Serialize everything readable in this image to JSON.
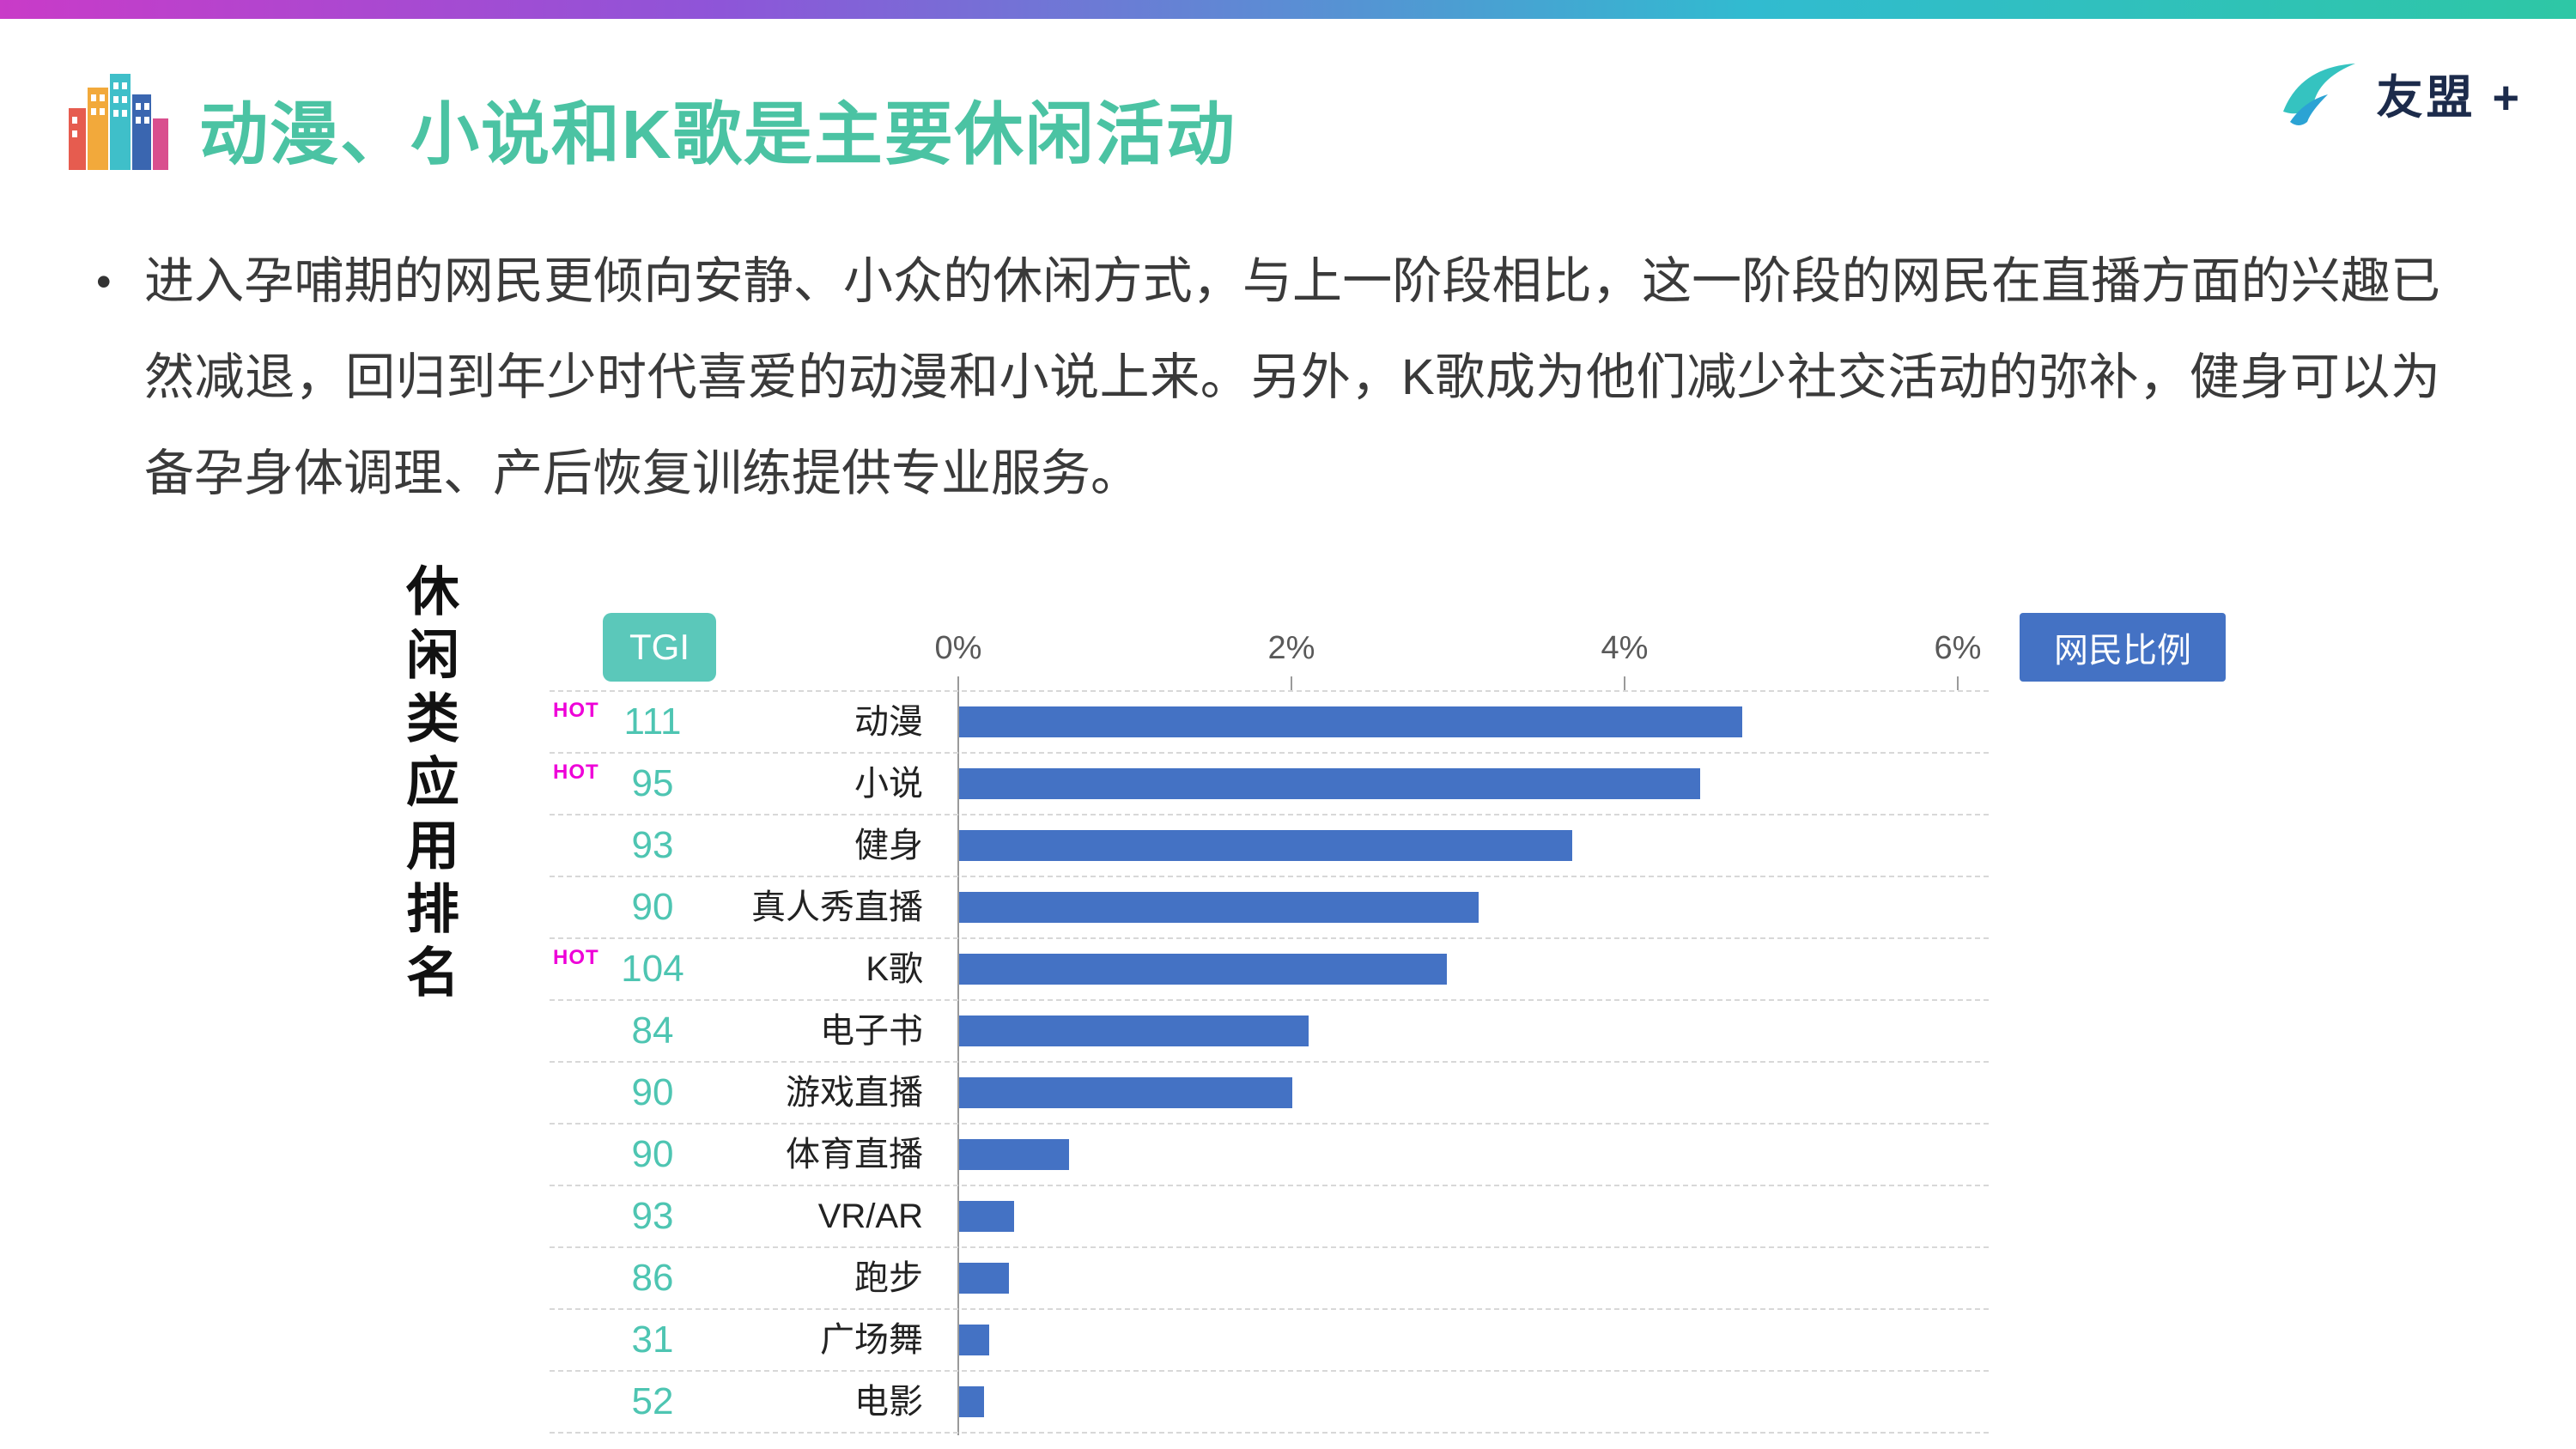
{
  "slide": {
    "title": "动漫、小说和K歌是主要休闲活动",
    "logo_text": "友盟 +",
    "bullet_marker": "•",
    "bullet_text": "进入孕哺期的网民更倾向安静、小众的休闲方式，与上一阶段相比，这一阶段的网民在直播方面的兴趣已然减退，回归到年少时代喜爱的动漫和小说上来。另外，K歌成为他们减少社交活动的弥补，健身可以为备孕身体调理、产后恢复训练提供专业服务。"
  },
  "chart_data": {
    "type": "bar",
    "orientation": "horizontal",
    "title": "休闲类应用排名",
    "tgi_header": "TGI",
    "legend_label": "网民比例",
    "hot_label": "HOT",
    "x_ticks": [
      "0%",
      "2%",
      "4%",
      "6%"
    ],
    "xlim": [
      0,
      6
    ],
    "x_unit": "%",
    "grid": "dashed horizontal row separators",
    "legend_position": "top-right",
    "categories": [
      "动漫",
      "小说",
      "健身",
      "真人秀直播",
      "K歌",
      "电子书",
      "游戏直播",
      "体育直播",
      "VR/AR",
      "跑步",
      "广场舞",
      "电影"
    ],
    "series": [
      {
        "name": "网民比例",
        "values": [
          4.7,
          4.45,
          3.68,
          3.12,
          2.93,
          2.1,
          2.0,
          0.66,
          0.33,
          0.3,
          0.18,
          0.15
        ]
      }
    ],
    "tgi_values": [
      111,
      95,
      93,
      90,
      104,
      84,
      90,
      90,
      93,
      86,
      31,
      52
    ],
    "hot_flags": [
      true,
      true,
      false,
      false,
      true,
      false,
      false,
      false,
      false,
      false,
      false,
      false
    ],
    "colors": {
      "bar": "#4472C4",
      "legend_bg": "#4472C4",
      "tgi_box_bg": "#5BC8BA",
      "tgi_text": "#4EC5B2",
      "hot": "#EE00D8",
      "title_teal": "#4BC3A3",
      "gradient_left": "#C93BC8",
      "gradient_right": "#2EC7A5"
    }
  }
}
